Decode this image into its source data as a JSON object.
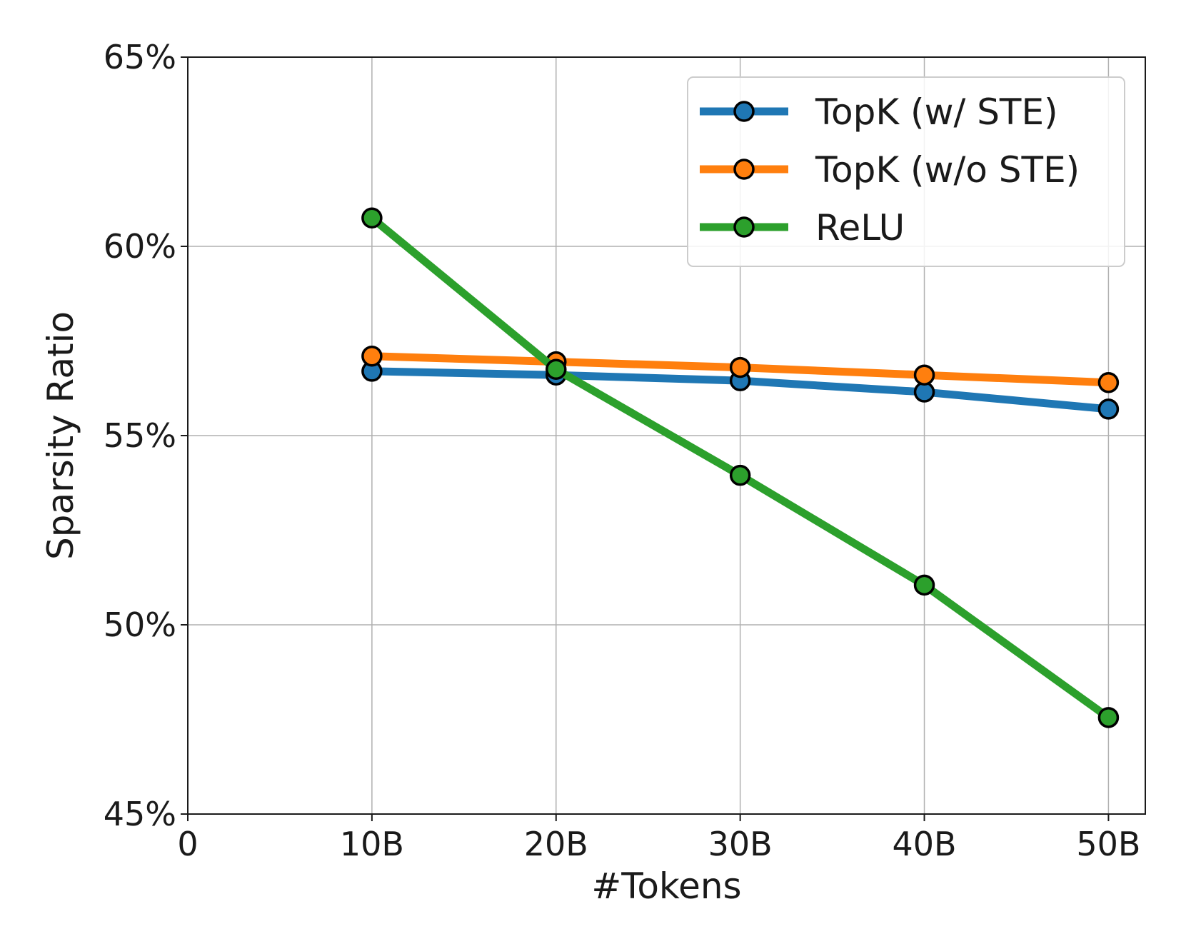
{
  "chart_data": {
    "type": "line",
    "title": "",
    "xlabel": "#Tokens",
    "ylabel": "Sparsity Ratio",
    "x": [
      10,
      20,
      30,
      40,
      50
    ],
    "xlim": [
      0,
      52
    ],
    "x_ticks": [
      0,
      10,
      20,
      30,
      40,
      50
    ],
    "x_tick_labels": [
      "0",
      "10B",
      "20B",
      "30B",
      "40B",
      "50B"
    ],
    "ylim": [
      45,
      65
    ],
    "y_ticks": [
      45,
      50,
      55,
      60,
      65
    ],
    "y_tick_labels": [
      "45%",
      "50%",
      "55%",
      "60%",
      "65%"
    ],
    "grid": true,
    "legend_position": "top-right",
    "series": [
      {
        "name": "TopK (w/ STE)",
        "color": "#1f77b4",
        "values": [
          56.7,
          56.6,
          56.45,
          56.15,
          55.7
        ]
      },
      {
        "name": "TopK (w/o STE)",
        "color": "#ff7f0e",
        "values": [
          57.1,
          56.95,
          56.8,
          56.6,
          56.4
        ]
      },
      {
        "name": "ReLU",
        "color": "#2ca02c",
        "values": [
          60.75,
          56.75,
          53.95,
          51.05,
          47.55
        ]
      }
    ]
  }
}
